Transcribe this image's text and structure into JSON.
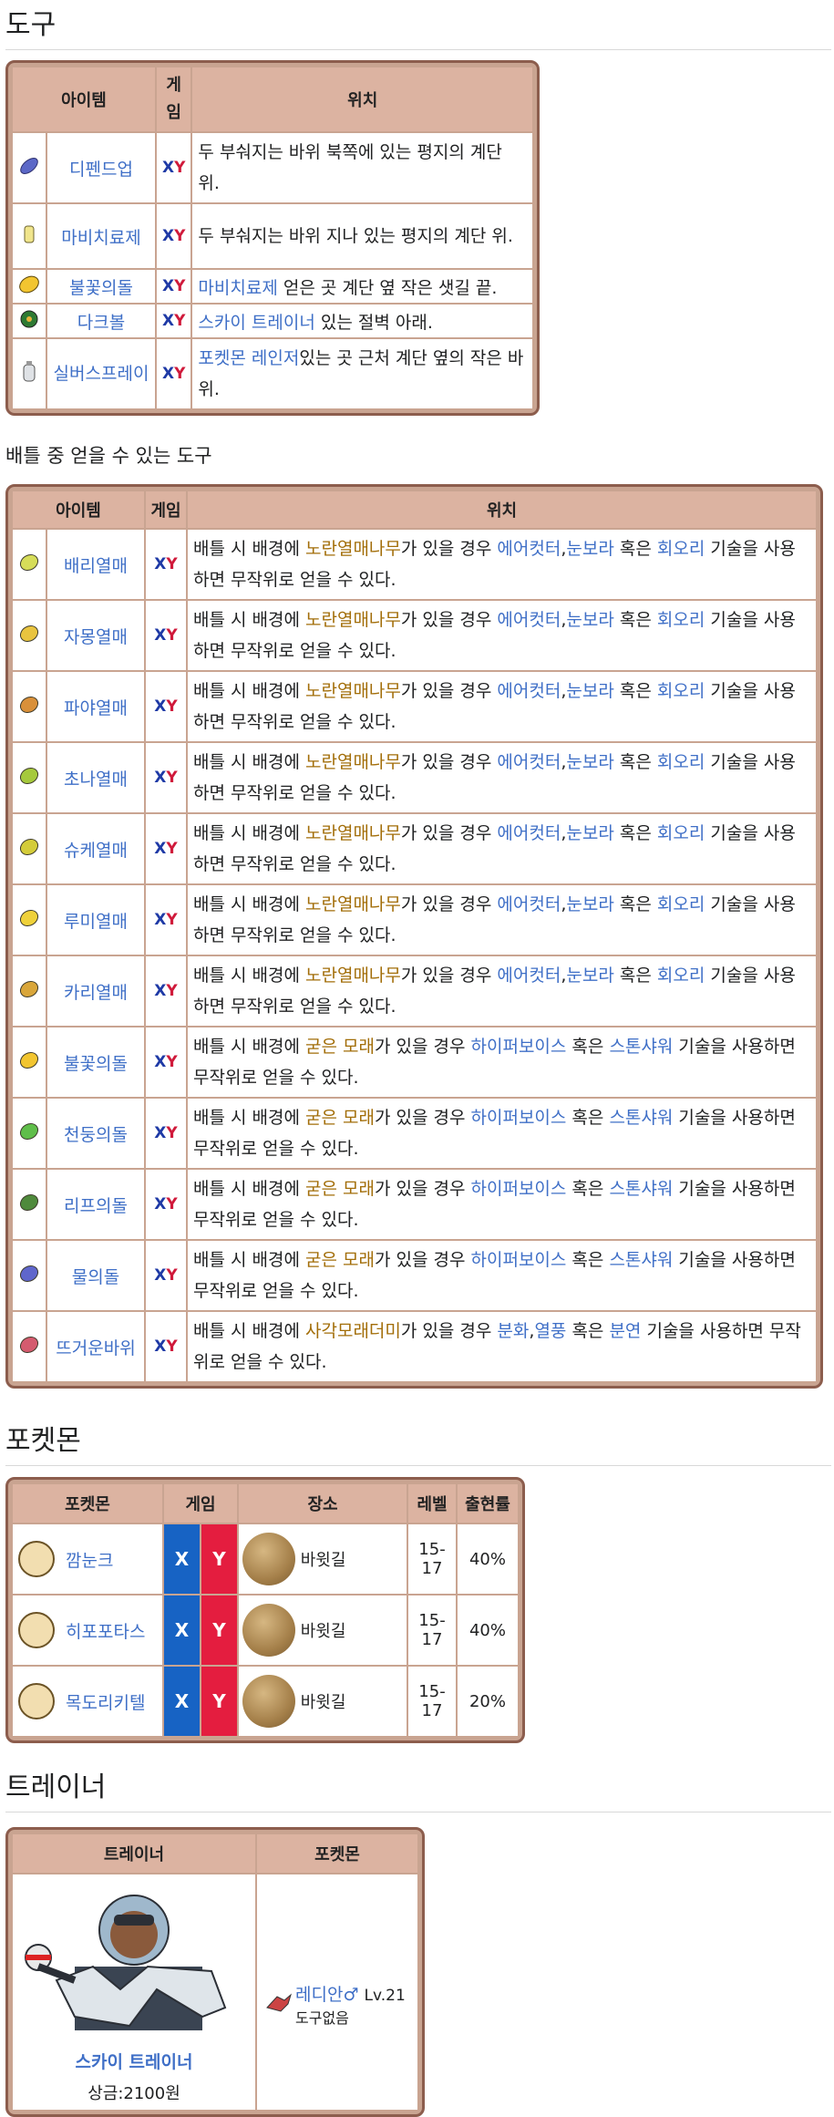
{
  "sections": {
    "tools": "도구",
    "battle_items": "배틀 중 얻을 수 있는 도구",
    "pokemon": "포켓몬",
    "trainer": "트레이너"
  },
  "tools_table": {
    "headers": [
      "아이템",
      "게임",
      "위치"
    ],
    "rows": [
      {
        "icon": "guard-spec-icon",
        "name": "디펜드업",
        "game": [
          "X",
          "Y"
        ],
        "location_text": "두 부숴지는 바위 북쪽에 있는 평지의 계단 위."
      },
      {
        "icon": "paralyze-heal-icon",
        "name": "마비치료제",
        "game": [
          "X",
          "Y"
        ],
        "location_text": "두 부숴지는 바위 지나 있는 평지의 계단 위."
      },
      {
        "icon": "fire-stone-icon",
        "name": "불꽃의돌",
        "game": [
          "X",
          "Y"
        ],
        "location_link": "마비치료제",
        "location_text": " 얻은 곳 계단 옆 작은 샛길 끝."
      },
      {
        "icon": "dusk-ball-icon",
        "name": "다크볼",
        "game": [
          "X",
          "Y"
        ],
        "location_link": "스카이 트레이너",
        "location_text": " 있는 절벽 아래."
      },
      {
        "icon": "silver-spray-icon",
        "name": "실버스프레이",
        "game": [
          "X",
          "Y"
        ],
        "location_link": "포켓몬 레인저",
        "location_text": "있는 곳 근처 계단 옆의 작은 바위."
      }
    ]
  },
  "battle_table": {
    "headers": [
      "아이템",
      "게임",
      "위치"
    ],
    "rows": [
      {
        "icon": "razz-berry-icon",
        "name": "배리열매",
        "game": [
          "X",
          "Y"
        ],
        "type": "tree"
      },
      {
        "icon": "bluk-berry-icon",
        "name": "자몽열매",
        "game": [
          "X",
          "Y"
        ],
        "type": "tree"
      },
      {
        "icon": "nanab-berry-icon",
        "name": "파야열매",
        "game": [
          "X",
          "Y"
        ],
        "type": "tree"
      },
      {
        "icon": "wepear-berry-icon",
        "name": "초나열매",
        "game": [
          "X",
          "Y"
        ],
        "type": "tree"
      },
      {
        "icon": "pinap-berry-icon",
        "name": "슈케열매",
        "game": [
          "X",
          "Y"
        ],
        "type": "tree"
      },
      {
        "icon": "lemon-berry-icon",
        "name": "루미열매",
        "game": [
          "X",
          "Y"
        ],
        "type": "tree"
      },
      {
        "icon": "kari-berry-icon",
        "name": "카리열매",
        "game": [
          "X",
          "Y"
        ],
        "type": "tree"
      },
      {
        "icon": "fire-stone-icon",
        "name": "불꽃의돌",
        "game": [
          "X",
          "Y"
        ],
        "type": "sand"
      },
      {
        "icon": "thunder-stone-icon",
        "name": "천둥의돌",
        "game": [
          "X",
          "Y"
        ],
        "type": "sand"
      },
      {
        "icon": "leaf-stone-icon",
        "name": "리프의돌",
        "game": [
          "X",
          "Y"
        ],
        "type": "sand"
      },
      {
        "icon": "water-stone-icon",
        "name": "물의돌",
        "game": [
          "X",
          "Y"
        ],
        "type": "sand"
      },
      {
        "icon": "heat-rock-icon",
        "name": "뜨거운바위",
        "game": [
          "X",
          "Y"
        ],
        "type": "rubble"
      }
    ],
    "tree_text": {
      "a": "배틀 시 배경에 ",
      "gold": "노란열매나무",
      "b": "가 있을 경우 ",
      "l1": "에어컷터",
      "sep": ",",
      "l2": "눈보라",
      "c": " 혹은 ",
      "l3": "회오리",
      "d": " 기술을 사용하면 무작위로 얻을 수 있다."
    },
    "sand_text": {
      "a": "배틀 시 배경에 ",
      "gold": "굳은 모래",
      "b": "가 있을 경우 ",
      "l1": "하이퍼보이스",
      "c": " 혹은 ",
      "l2": "스톤샤워",
      "d": " 기술을 사용하면 무작위로 얻을 수 있다."
    },
    "rubble_text": {
      "a": "배틀 시 배경에 ",
      "gold": "사각모래더미",
      "b": "가 있을 경우 ",
      "l1": "분화",
      "sep": ",",
      "l2": "열풍",
      "c": " 혹은 ",
      "l3": "분연",
      "d": " 기술을 사용하면 무작위로 얻을 수 있다."
    }
  },
  "pokemon_table": {
    "headers": [
      "포켓몬",
      "게임",
      "장소",
      "레벨",
      "출현률"
    ],
    "rows": [
      {
        "name": "깜눈크",
        "x": "X",
        "y": "Y",
        "place": "바윗길",
        "level": "15-17",
        "rate": "40%"
      },
      {
        "name": "히포포타스",
        "x": "X",
        "y": "Y",
        "place": "바윗길",
        "level": "15-17",
        "rate": "40%"
      },
      {
        "name": "목도리키텔",
        "x": "X",
        "y": "Y",
        "place": "바윗길",
        "level": "15-17",
        "rate": "20%"
      }
    ]
  },
  "trainer_table": {
    "headers": [
      "트레이너",
      "포켓몬"
    ],
    "trainer_name": "스카이 트레이너",
    "reward": "상금:2100원",
    "pokemon_name": "레디안",
    "gender": "♂",
    "level": "Lv.21",
    "held_item": "도구없음"
  }
}
